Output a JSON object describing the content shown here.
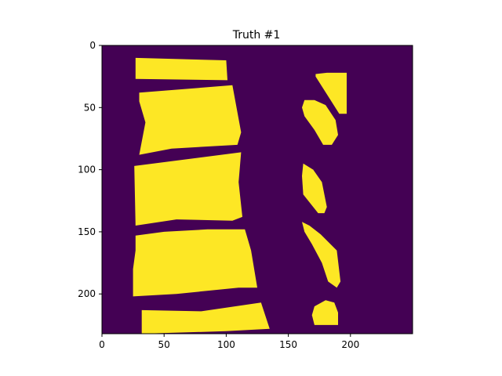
{
  "chart_data": {
    "type": "heatmap",
    "title": "Truth #1",
    "xlabel": "",
    "ylabel": "",
    "xlim": [
      0,
      250
    ],
    "ylim": [
      232,
      0
    ],
    "x_ticks": [
      0,
      50,
      100,
      150,
      200
    ],
    "y_ticks": [
      0,
      50,
      100,
      150,
      200
    ],
    "colors": {
      "background": "#440154",
      "foreground": "#fde725"
    },
    "grid": false,
    "regions": [
      {
        "name": "vertebra-1",
        "points": [
          [
            27,
            10
          ],
          [
            100,
            12
          ],
          [
            101,
            28
          ],
          [
            27,
            27
          ]
        ]
      },
      {
        "name": "vertebra-2",
        "points": [
          [
            30,
            38
          ],
          [
            105,
            32
          ],
          [
            112,
            70
          ],
          [
            109,
            80
          ],
          [
            56,
            83
          ],
          [
            30,
            88
          ],
          [
            35,
            62
          ],
          [
            30,
            45
          ]
        ]
      },
      {
        "name": "vertebra-3",
        "points": [
          [
            26,
            97
          ],
          [
            112,
            86
          ],
          [
            110,
            110
          ],
          [
            113,
            138
          ],
          [
            105,
            141
          ],
          [
            60,
            140
          ],
          [
            27,
            145
          ]
        ]
      },
      {
        "name": "vertebra-4",
        "points": [
          [
            27,
            153
          ],
          [
            50,
            150
          ],
          [
            85,
            148
          ],
          [
            115,
            148
          ],
          [
            120,
            165
          ],
          [
            125,
            195
          ],
          [
            110,
            195
          ],
          [
            60,
            200
          ],
          [
            25,
            202
          ],
          [
            25,
            180
          ],
          [
            27,
            165
          ]
        ]
      },
      {
        "name": "vertebra-5",
        "points": [
          [
            32,
            213
          ],
          [
            80,
            214
          ],
          [
            128,
            207
          ],
          [
            135,
            228
          ],
          [
            100,
            230
          ],
          [
            32,
            232
          ]
        ]
      },
      {
        "name": "process-1",
        "points": [
          [
            172,
            23
          ],
          [
            181,
            22
          ],
          [
            189,
            22
          ],
          [
            197,
            22
          ],
          [
            197,
            55
          ],
          [
            191,
            55
          ],
          [
            172,
            25
          ]
        ]
      },
      {
        "name": "process-2",
        "points": [
          [
            163,
            44
          ],
          [
            171,
            44
          ],
          [
            180,
            48
          ],
          [
            188,
            60
          ],
          [
            190,
            72
          ],
          [
            185,
            80
          ],
          [
            178,
            80
          ],
          [
            171,
            68
          ],
          [
            163,
            57
          ],
          [
            161,
            50
          ]
        ]
      },
      {
        "name": "process-3",
        "points": [
          [
            162,
            95
          ],
          [
            170,
            100
          ],
          [
            177,
            110
          ],
          [
            181,
            130
          ],
          [
            179,
            135
          ],
          [
            174,
            135
          ],
          [
            162,
            120
          ],
          [
            161,
            105
          ]
        ]
      },
      {
        "name": "process-4",
        "points": [
          [
            161,
            142
          ],
          [
            167,
            145
          ],
          [
            176,
            152
          ],
          [
            189,
            165
          ],
          [
            192,
            190
          ],
          [
            189,
            195
          ],
          [
            182,
            190
          ],
          [
            177,
            175
          ],
          [
            169,
            160
          ],
          [
            163,
            150
          ]
        ]
      },
      {
        "name": "process-5",
        "points": [
          [
            171,
            210
          ],
          [
            180,
            205
          ],
          [
            187,
            207
          ],
          [
            190,
            215
          ],
          [
            190,
            225
          ],
          [
            171,
            225
          ],
          [
            169,
            217
          ]
        ]
      }
    ]
  }
}
